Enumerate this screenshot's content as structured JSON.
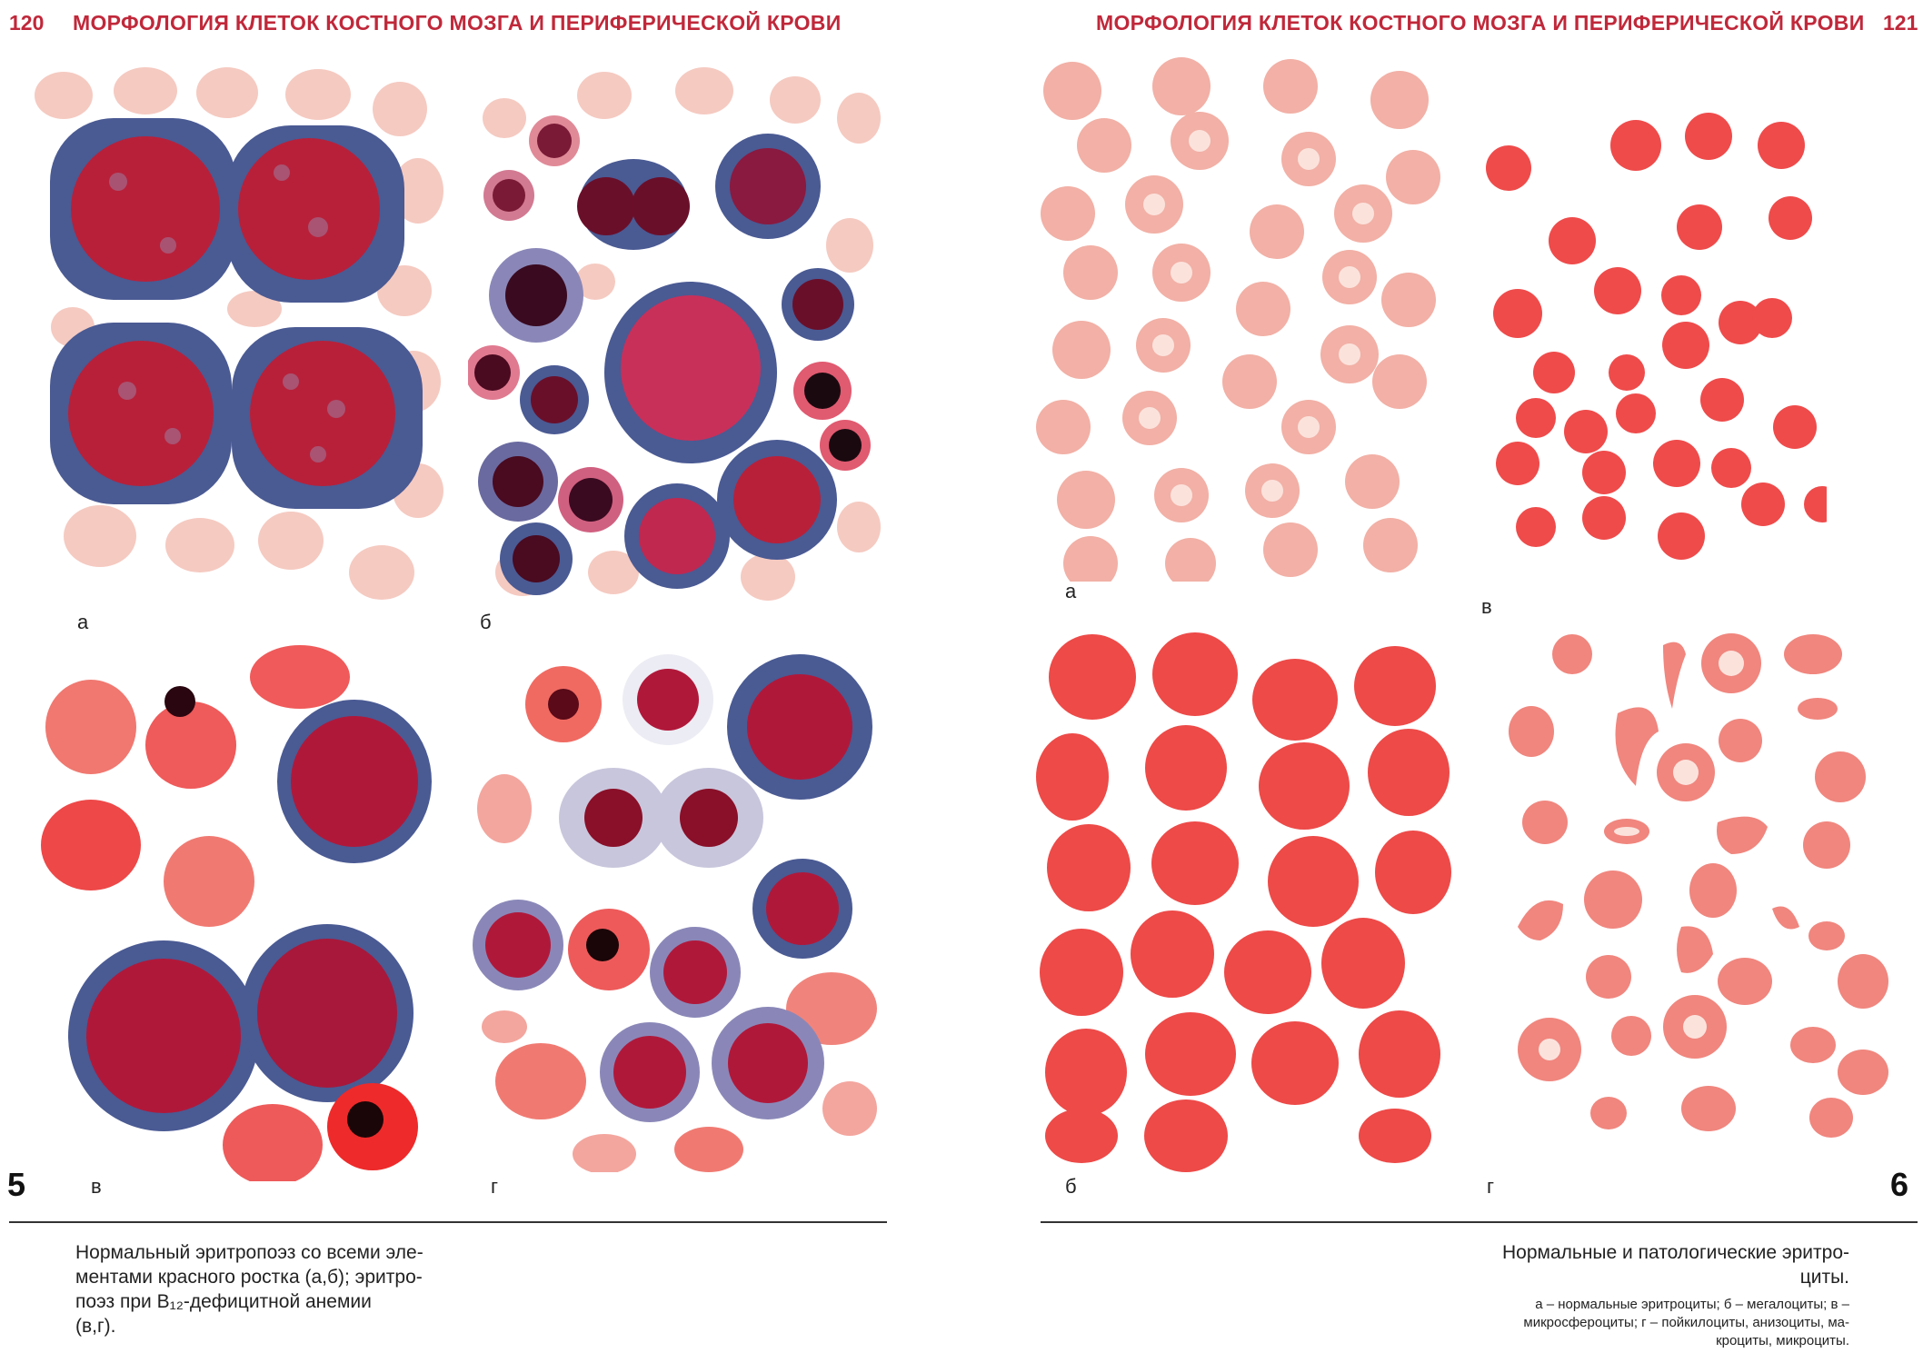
{
  "left_page": {
    "page_number": "120",
    "running_head": "МОРФОЛОГИЯ КЛЕТОК КОСТНОГО МОЗГА И ПЕРИФЕРИЧЕСКОЙ КРОВИ",
    "plate_number": "5",
    "panel_labels": [
      "а",
      "б",
      "в",
      "г"
    ],
    "caption_lines": [
      "Нормальный эритропоэз со всеми эле-",
      "ментами красного ростка (а,б); эритро-",
      "поэз при B₁₂-дефицитной анемии",
      "(в,г)."
    ]
  },
  "right_page": {
    "page_number": "121",
    "running_head": "МОРФОЛОГИЯ КЛЕТОК КОСТНОГО МОЗГА И ПЕРИФЕРИЧЕСКОЙ КРОВИ",
    "plate_number": "6",
    "panel_labels": [
      "а",
      "в",
      "б",
      "г"
    ],
    "caption_title_lines": [
      "Нормальные и патологические эритро-",
      "циты."
    ],
    "caption_detail_lines": [
      "а – нормальные эритроциты; б – мегалоциты; в –",
      "микросфероциты; г – пойкилоциты, анизоциты, ма-",
      "кроциты, микроциты."
    ]
  },
  "colors": {
    "heading": "#c0283a",
    "erythrocyte": "#f2b0a6",
    "nucleus": "#b8203a",
    "cytoplasm": "#4a5a93"
  }
}
